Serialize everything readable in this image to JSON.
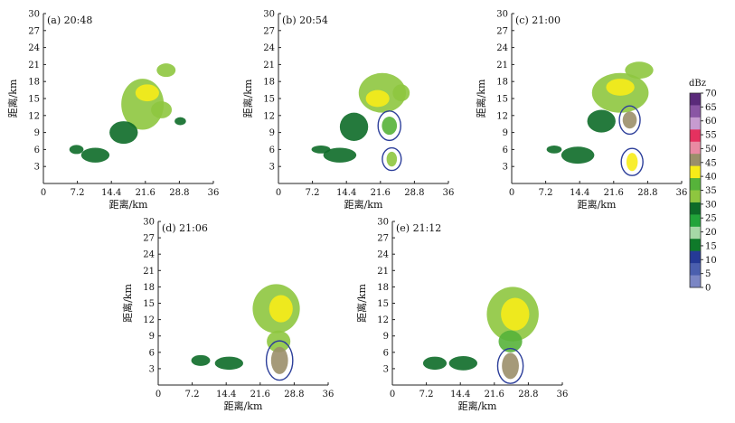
{
  "colorbar": {
    "unit": "dBz",
    "ticks": [
      0,
      5,
      10,
      15,
      20,
      25,
      30,
      35,
      40,
      45,
      50,
      55,
      60,
      65,
      70
    ],
    "colors": [
      "#7b86c4",
      "#4b5fae",
      "#253a96",
      "#0f7a2a",
      "#a6d8a6",
      "#22a43a",
      "#0d6b28",
      "#8ec63f",
      "#56b33a",
      "#f7ec18",
      "#9b8f6a",
      "#e98aa3",
      "#e5315f",
      "#c79bd0",
      "#8a55a4",
      "#5a2a7a"
    ]
  },
  "chart_data": [
    {
      "type": "heatmap",
      "title": "(a)  20:48",
      "xlabel": "距离/km",
      "ylabel": "距离/km",
      "xlim": [
        0,
        36
      ],
      "ylim": [
        0,
        30
      ],
      "xticks": [
        "0",
        "7.2",
        "14.4",
        "21.6",
        "28.8",
        "36"
      ],
      "yticks": [
        "3",
        "6",
        "9",
        "12",
        "15",
        "18",
        "21",
        "24",
        "27",
        "30"
      ],
      "circles": [],
      "cells": [
        {
          "x": 21,
          "y": 14,
          "rx": 4.5,
          "ry": 4.5,
          "dbz": 30
        },
        {
          "x": 22,
          "y": 16,
          "rx": 2.5,
          "ry": 1.5,
          "dbz": 40
        },
        {
          "x": 26,
          "y": 20,
          "rx": 2,
          "ry": 1.2,
          "dbz": 30
        },
        {
          "x": 25,
          "y": 13,
          "rx": 2.2,
          "ry": 1.5,
          "dbz": 30
        },
        {
          "x": 17,
          "y": 9,
          "rx": 3,
          "ry": 2,
          "dbz": 25
        },
        {
          "x": 11,
          "y": 5,
          "rx": 3,
          "ry": 1.3,
          "dbz": 25
        },
        {
          "x": 7,
          "y": 6,
          "rx": 1.5,
          "ry": 0.8,
          "dbz": 25
        },
        {
          "x": 29,
          "y": 11,
          "rx": 1.2,
          "ry": 0.7,
          "dbz": 25
        }
      ]
    },
    {
      "type": "heatmap",
      "title": "(b)  20:54",
      "xlabel": "距离/km",
      "ylabel": "距离/km",
      "xlim": [
        0,
        36
      ],
      "ylim": [
        0,
        30
      ],
      "xticks": [
        "0",
        "7.2",
        "14.4",
        "21.6",
        "28.8",
        "36"
      ],
      "yticks": [
        "3",
        "6",
        "9",
        "12",
        "15",
        "18",
        "21",
        "24",
        "27",
        "30"
      ],
      "circles": [
        {
          "x": 23.5,
          "y": 10.2,
          "rx": 2.4,
          "ry": 2.6
        },
        {
          "x": 24,
          "y": 4.3,
          "rx": 2,
          "ry": 2
        }
      ],
      "cells": [
        {
          "x": 22,
          "y": 16,
          "rx": 5,
          "ry": 3.5,
          "dbz": 30
        },
        {
          "x": 21,
          "y": 15,
          "rx": 2.5,
          "ry": 1.5,
          "dbz": 40
        },
        {
          "x": 26,
          "y": 16,
          "rx": 1.8,
          "ry": 1.5,
          "dbz": 30
        },
        {
          "x": 16,
          "y": 10,
          "rx": 3,
          "ry": 2.5,
          "dbz": 25
        },
        {
          "x": 23.5,
          "y": 10.2,
          "rx": 1.6,
          "ry": 1.6,
          "dbz": 35
        },
        {
          "x": 24,
          "y": 4.3,
          "rx": 1.1,
          "ry": 1.3,
          "dbz": 30
        },
        {
          "x": 13,
          "y": 5,
          "rx": 3.5,
          "ry": 1.3,
          "dbz": 25
        },
        {
          "x": 9,
          "y": 6,
          "rx": 2,
          "ry": 0.7,
          "dbz": 25
        }
      ]
    },
    {
      "type": "heatmap",
      "title": "(c)  21:00",
      "xlabel": "距离/km",
      "ylabel": "距离/km",
      "xlim": [
        0,
        36
      ],
      "ylim": [
        0,
        30
      ],
      "xticks": [
        "0",
        "7.2",
        "14.4",
        "21.6",
        "28.8",
        "36"
      ],
      "yticks": [
        "3",
        "6",
        "9",
        "12",
        "15",
        "18",
        "21",
        "24",
        "27",
        "30"
      ],
      "circles": [
        {
          "x": 25,
          "y": 11.2,
          "rx": 2.2,
          "ry": 2.5
        },
        {
          "x": 25.5,
          "y": 3.8,
          "rx": 2.3,
          "ry": 2.4
        }
      ],
      "cells": [
        {
          "x": 23,
          "y": 16,
          "rx": 6,
          "ry": 3.5,
          "dbz": 30
        },
        {
          "x": 23,
          "y": 17,
          "rx": 3,
          "ry": 1.5,
          "dbz": 40
        },
        {
          "x": 27,
          "y": 20,
          "rx": 3,
          "ry": 1.5,
          "dbz": 30
        },
        {
          "x": 19,
          "y": 11,
          "rx": 3,
          "ry": 2,
          "dbz": 25
        },
        {
          "x": 25,
          "y": 11.2,
          "rx": 1.5,
          "ry": 1.5,
          "dbz": 45
        },
        {
          "x": 25.5,
          "y": 3.8,
          "rx": 1.2,
          "ry": 1.6,
          "dbz": 40
        },
        {
          "x": 14,
          "y": 5,
          "rx": 3.5,
          "ry": 1.5,
          "dbz": 25
        },
        {
          "x": 9,
          "y": 6,
          "rx": 1.6,
          "ry": 0.7,
          "dbz": 25
        }
      ]
    },
    {
      "type": "heatmap",
      "title": "(d)  21:06",
      "xlabel": "距离/km",
      "ylabel": "距离/km",
      "xlim": [
        0,
        36
      ],
      "ylim": [
        0,
        30
      ],
      "xticks": [
        "0",
        "7.2",
        "14.4",
        "21.6",
        "28.8",
        "36"
      ],
      "yticks": [
        "3",
        "6",
        "9",
        "12",
        "15",
        "18",
        "21",
        "24",
        "27",
        "30"
      ],
      "circles": [
        {
          "x": 25.7,
          "y": 4.5,
          "rx": 2.8,
          "ry": 3.6
        }
      ],
      "cells": [
        {
          "x": 25,
          "y": 14,
          "rx": 5,
          "ry": 4.5,
          "dbz": 30
        },
        {
          "x": 26,
          "y": 14,
          "rx": 2.5,
          "ry": 2.5,
          "dbz": 40
        },
        {
          "x": 25.5,
          "y": 8,
          "rx": 2.5,
          "ry": 2,
          "dbz": 30
        },
        {
          "x": 25.7,
          "y": 4.5,
          "rx": 1.8,
          "ry": 2.5,
          "dbz": 45
        },
        {
          "x": 15,
          "y": 4,
          "rx": 3,
          "ry": 1.2,
          "dbz": 25
        },
        {
          "x": 9,
          "y": 4.5,
          "rx": 2,
          "ry": 1,
          "dbz": 25
        }
      ]
    },
    {
      "type": "heatmap",
      "title": "(e)  21:12",
      "xlabel": "距离/km",
      "ylabel": "距离/km",
      "xlim": [
        0,
        36
      ],
      "ylim": [
        0,
        30
      ],
      "xticks": [
        "0",
        "7.2",
        "14.4",
        "21.6",
        "28.8",
        "36"
      ],
      "yticks": [
        "3",
        "6",
        "9",
        "12",
        "15",
        "18",
        "21",
        "24",
        "27",
        "30"
      ],
      "circles": [
        {
          "x": 25,
          "y": 3.5,
          "rx": 2.7,
          "ry": 3.2
        }
      ],
      "cells": [
        {
          "x": 25.5,
          "y": 13,
          "rx": 5.5,
          "ry": 5,
          "dbz": 30
        },
        {
          "x": 26,
          "y": 13,
          "rx": 3,
          "ry": 3,
          "dbz": 40
        },
        {
          "x": 25,
          "y": 8,
          "rx": 2.5,
          "ry": 2,
          "dbz": 35
        },
        {
          "x": 25,
          "y": 3.5,
          "rx": 1.8,
          "ry": 2.4,
          "dbz": 45
        },
        {
          "x": 15,
          "y": 4,
          "rx": 3,
          "ry": 1.3,
          "dbz": 25
        },
        {
          "x": 9,
          "y": 4,
          "rx": 2.5,
          "ry": 1.2,
          "dbz": 25
        }
      ]
    }
  ]
}
